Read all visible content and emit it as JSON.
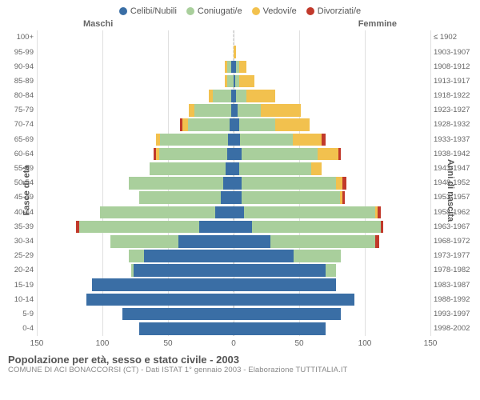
{
  "legend": {
    "items": [
      {
        "label": "Celibi/Nubili",
        "color": "#3a6ea5"
      },
      {
        "label": "Coniugati/e",
        "color": "#a9cf9c"
      },
      {
        "label": "Vedovi/e",
        "color": "#f2c14e"
      },
      {
        "label": "Divorziati/e",
        "color": "#c1392b"
      }
    ]
  },
  "side_headers": {
    "left": "Maschi",
    "right": "Femmine"
  },
  "axis_titles": {
    "left": "Fasce di età",
    "right": "Anni di nascita"
  },
  "age_bands": [
    "100+",
    "95-99",
    "90-94",
    "85-89",
    "80-84",
    "75-79",
    "70-74",
    "65-69",
    "60-64",
    "55-59",
    "50-54",
    "45-49",
    "40-44",
    "35-39",
    "30-34",
    "25-29",
    "20-24",
    "15-19",
    "10-14",
    "5-9",
    "0-4"
  ],
  "birth_years": [
    "≤ 1902",
    "1903-1907",
    "1908-1912",
    "1913-1917",
    "1918-1922",
    "1923-1927",
    "1928-1932",
    "1933-1937",
    "1938-1942",
    "1943-1947",
    "1948-1952",
    "1953-1957",
    "1958-1962",
    "1963-1967",
    "1968-1972",
    "1973-1977",
    "1978-1982",
    "1983-1987",
    "1988-1992",
    "1993-1997",
    "1998-2002"
  ],
  "x_axis": {
    "max": 150,
    "ticks": [
      150,
      100,
      50,
      0,
      50,
      100,
      150
    ]
  },
  "colors": {
    "celibi": "#3a6ea5",
    "coniugati": "#a9cf9c",
    "vedovi": "#f2c14e",
    "divorziati": "#c1392b",
    "grid": "#e0e0e0",
    "center_dash": "#bbbbbb",
    "text": "#666666",
    "bg": "#ffffff"
  },
  "data": [
    {
      "m": {
        "cel": 0,
        "con": 0,
        "ved": 0,
        "div": 0
      },
      "f": {
        "cel": 0,
        "con": 0,
        "ved": 0,
        "div": 0
      }
    },
    {
      "m": {
        "cel": 0,
        "con": 0,
        "ved": 0,
        "div": 0
      },
      "f": {
        "cel": 0,
        "con": 0,
        "ved": 2,
        "div": 0
      }
    },
    {
      "m": {
        "cel": 2,
        "con": 3,
        "ved": 2,
        "div": 0
      },
      "f": {
        "cel": 2,
        "con": 2,
        "ved": 6,
        "div": 0
      }
    },
    {
      "m": {
        "cel": 0,
        "con": 5,
        "ved": 2,
        "div": 0
      },
      "f": {
        "cel": 1,
        "con": 3,
        "ved": 12,
        "div": 0
      }
    },
    {
      "m": {
        "cel": 2,
        "con": 14,
        "ved": 3,
        "div": 0
      },
      "f": {
        "cel": 2,
        "con": 8,
        "ved": 22,
        "div": 0
      }
    },
    {
      "m": {
        "cel": 2,
        "con": 28,
        "ved": 4,
        "div": 0
      },
      "f": {
        "cel": 3,
        "con": 18,
        "ved": 30,
        "div": 0
      }
    },
    {
      "m": {
        "cel": 3,
        "con": 32,
        "ved": 4,
        "div": 2
      },
      "f": {
        "cel": 4,
        "con": 28,
        "ved": 26,
        "div": 0
      }
    },
    {
      "m": {
        "cel": 4,
        "con": 52,
        "ved": 3,
        "div": 0
      },
      "f": {
        "cel": 5,
        "con": 40,
        "ved": 22,
        "div": 3
      }
    },
    {
      "m": {
        "cel": 5,
        "con": 52,
        "ved": 2,
        "div": 2
      },
      "f": {
        "cel": 6,
        "con": 58,
        "ved": 16,
        "div": 2
      }
    },
    {
      "m": {
        "cel": 6,
        "con": 58,
        "ved": 0,
        "div": 0
      },
      "f": {
        "cel": 4,
        "con": 55,
        "ved": 8,
        "div": 0
      }
    },
    {
      "m": {
        "cel": 8,
        "con": 72,
        "ved": 0,
        "div": 0
      },
      "f": {
        "cel": 6,
        "con": 72,
        "ved": 5,
        "div": 3
      }
    },
    {
      "m": {
        "cel": 10,
        "con": 62,
        "ved": 0,
        "div": 0
      },
      "f": {
        "cel": 6,
        "con": 75,
        "ved": 2,
        "div": 2
      }
    },
    {
      "m": {
        "cel": 14,
        "con": 88,
        "ved": 0,
        "div": 0
      },
      "f": {
        "cel": 8,
        "con": 100,
        "ved": 2,
        "div": 2
      }
    },
    {
      "m": {
        "cel": 26,
        "con": 92,
        "ved": 0,
        "div": 2
      },
      "f": {
        "cel": 14,
        "con": 98,
        "ved": 0,
        "div": 2
      }
    },
    {
      "m": {
        "cel": 42,
        "con": 52,
        "ved": 0,
        "div": 0
      },
      "f": {
        "cel": 28,
        "con": 80,
        "ved": 0,
        "div": 3
      }
    },
    {
      "m": {
        "cel": 68,
        "con": 12,
        "ved": 0,
        "div": 0
      },
      "f": {
        "cel": 46,
        "con": 36,
        "ved": 0,
        "div": 0
      }
    },
    {
      "m": {
        "cel": 76,
        "con": 2,
        "ved": 0,
        "div": 0
      },
      "f": {
        "cel": 70,
        "con": 8,
        "ved": 0,
        "div": 0
      }
    },
    {
      "m": {
        "cel": 108,
        "con": 0,
        "ved": 0,
        "div": 0
      },
      "f": {
        "cel": 78,
        "con": 0,
        "ved": 0,
        "div": 0
      }
    },
    {
      "m": {
        "cel": 112,
        "con": 0,
        "ved": 0,
        "div": 0
      },
      "f": {
        "cel": 92,
        "con": 0,
        "ved": 0,
        "div": 0
      }
    },
    {
      "m": {
        "cel": 85,
        "con": 0,
        "ved": 0,
        "div": 0
      },
      "f": {
        "cel": 82,
        "con": 0,
        "ved": 0,
        "div": 0
      }
    },
    {
      "m": {
        "cel": 72,
        "con": 0,
        "ved": 0,
        "div": 0
      },
      "f": {
        "cel": 70,
        "con": 0,
        "ved": 0,
        "div": 0
      }
    }
  ],
  "caption": {
    "title": "Popolazione per età, sesso e stato civile - 2003",
    "subtitle": "COMUNE DI ACI BONACCORSI (CT) - Dati ISTAT 1° gennaio 2003 - Elaborazione TUTTITALIA.IT"
  }
}
